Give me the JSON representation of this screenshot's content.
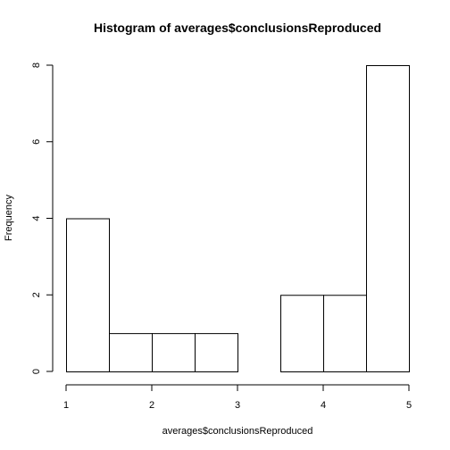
{
  "chart_data": {
    "type": "bar",
    "title": "Histogram of averages$conclusionsReproduced",
    "xlabel": "averages$conclusionsReproduced",
    "ylabel": "Frequency",
    "bins": [
      {
        "start": 1.0,
        "end": 1.5,
        "count": 4
      },
      {
        "start": 1.5,
        "end": 2.0,
        "count": 1
      },
      {
        "start": 2.0,
        "end": 2.5,
        "count": 1
      },
      {
        "start": 2.5,
        "end": 3.0,
        "count": 1
      },
      {
        "start": 3.0,
        "end": 3.5,
        "count": 0
      },
      {
        "start": 3.5,
        "end": 4.0,
        "count": 2
      },
      {
        "start": 4.0,
        "end": 4.5,
        "count": 2
      },
      {
        "start": 4.5,
        "end": 5.0,
        "count": 8
      }
    ],
    "xlim": [
      1,
      5
    ],
    "ylim": [
      0,
      8
    ],
    "xticks": [
      "1",
      "2",
      "3",
      "4",
      "5"
    ],
    "yticks": [
      "0",
      "2",
      "4",
      "6",
      "8"
    ],
    "grid": false,
    "legend": "none"
  }
}
